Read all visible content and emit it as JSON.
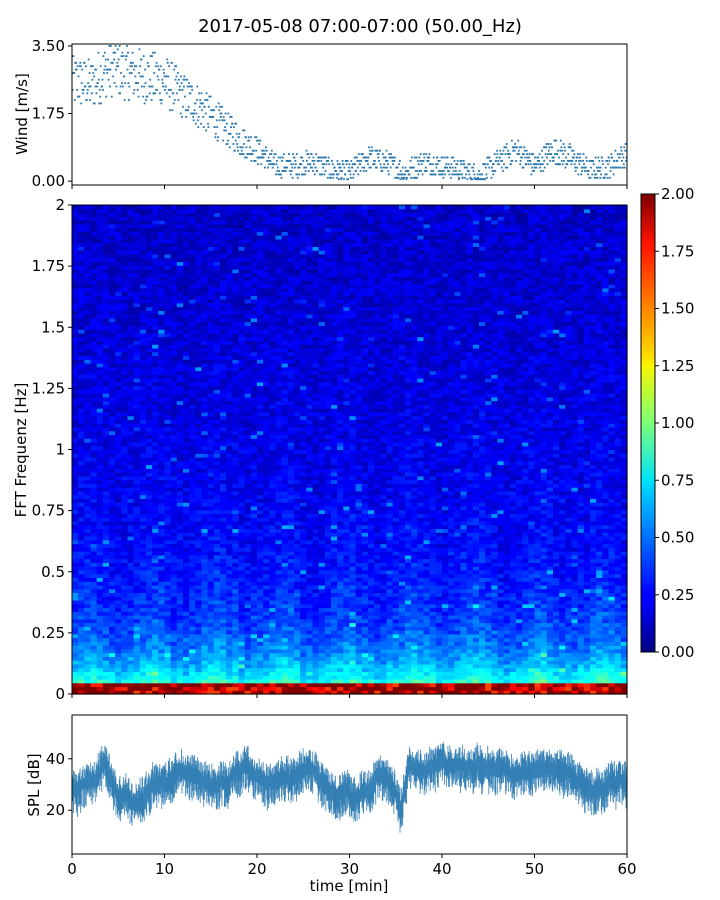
{
  "title": "2017-05-08 07:00-07:00 (50.00_Hz)",
  "colors": {
    "series": "#2878b0",
    "axis": "#000000",
    "background": "#ffffff",
    "colormap": "jet"
  },
  "chart_data": [
    {
      "type": "scatter",
      "ylabel": "Wind [m/s]",
      "xlim": [
        0,
        60
      ],
      "ylim": [
        -0.1,
        3.55
      ],
      "yticks": [
        "0.00",
        "1.75",
        "3.50"
      ],
      "grid": false,
      "x_ticklabels_shown": false,
      "series": [
        {
          "x": [
            0,
            2,
            4,
            6,
            8,
            10,
            12,
            14,
            16,
            18,
            20,
            22,
            24,
            26,
            28,
            30,
            32,
            34,
            36,
            38,
            40,
            42,
            44,
            46,
            48,
            50,
            52,
            54,
            56,
            58,
            60
          ],
          "y": [
            2.6,
            2.5,
            2.9,
            2.8,
            2.7,
            2.6,
            2.2,
            1.9,
            1.5,
            1.1,
            0.8,
            0.4,
            0.4,
            0.5,
            0.3,
            0.2,
            0.6,
            0.5,
            0.2,
            0.5,
            0.4,
            0.3,
            0.1,
            0.5,
            0.8,
            0.4,
            0.8,
            0.6,
            0.3,
            0.4,
            0.7
          ]
        }
      ]
    },
    {
      "type": "heatmap",
      "ylabel": "FFT Frequenz [Hz]",
      "xlim": [
        0,
        60
      ],
      "ylim": [
        0,
        2
      ],
      "yticks": [
        "0",
        "0.25",
        "0.5",
        "0.75",
        "1",
        "1.25",
        "1.5",
        "1.75",
        "2"
      ],
      "x_ticklabels_shown": false,
      "colorbar": {
        "range": [
          0,
          2
        ],
        "ticks": [
          "0.00",
          "0.25",
          "0.50",
          "0.75",
          "1.00",
          "1.25",
          "1.50",
          "1.75",
          "2.00"
        ],
        "colormap": "jet"
      }
    },
    {
      "type": "line",
      "xlabel": "time [min]",
      "ylabel": "SPL [dB]",
      "xlim": [
        0,
        60
      ],
      "ylim": [
        3,
        57
      ],
      "xticks": [
        "0",
        "10",
        "20",
        "30",
        "40",
        "50",
        "60"
      ],
      "yticks": [
        "20",
        "40"
      ],
      "grid": false,
      "series": [
        {
          "x": [
            0,
            2,
            3.5,
            5,
            7,
            9,
            11,
            13,
            15,
            17,
            19,
            21,
            23,
            25,
            27,
            29,
            31,
            33,
            34.5,
            35.5,
            36.5,
            38,
            40,
            42,
            44,
            46,
            48,
            50,
            52,
            54,
            56,
            58,
            60
          ],
          "y": [
            27,
            30,
            38,
            25,
            23,
            30,
            33,
            35,
            30,
            32,
            38,
            30,
            33,
            36,
            32,
            27,
            25,
            33,
            30,
            20,
            40,
            36,
            38,
            38,
            37,
            36,
            34,
            35,
            35,
            33,
            27,
            29,
            33
          ]
        }
      ]
    }
  ]
}
